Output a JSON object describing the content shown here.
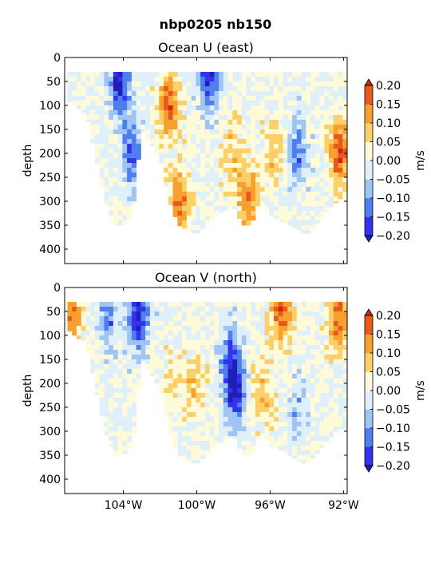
{
  "figure_title": "nbp0205 nb150",
  "colors": {
    "levels": [
      {
        "from": -0.2,
        "to": -0.15,
        "color": "#3333ee"
      },
      {
        "from": -0.15,
        "to": -0.1,
        "color": "#4f7fee"
      },
      {
        "from": -0.1,
        "to": -0.05,
        "color": "#9ec5f3"
      },
      {
        "from": -0.05,
        "to": 0.0,
        "color": "#dff0fb"
      },
      {
        "from": 0.0,
        "to": 0.05,
        "color": "#fffbd9"
      },
      {
        "from": 0.05,
        "to": 0.1,
        "color": "#fbd06a"
      },
      {
        "from": 0.1,
        "to": 0.15,
        "color": "#f5a02f"
      },
      {
        "from": 0.15,
        "to": 0.2,
        "color": "#e85a1c"
      }
    ],
    "under": "#1f1fb8",
    "over": "#d1260f"
  },
  "chart_data": [
    {
      "type": "heatmap",
      "title": "Ocean U (east)",
      "xlabel": "",
      "ylabel": "depth",
      "xlim": [
        -107.2,
        91.8
      ],
      "ylim_inverted": [
        0,
        430
      ],
      "y_ticks": [
        0,
        50,
        100,
        150,
        200,
        250,
        300,
        350,
        400
      ],
      "x_ticks": [],
      "colorbar_label": "m/s",
      "colorbar_ticks": [
        "0.20",
        "0.15",
        "0.10",
        "0.05",
        "0.00",
        "−0.05",
        "−0.10",
        "−0.15",
        "−0.20"
      ],
      "extend": "both",
      "bottom_depth_profile": {
        "lon": [
          -107.0,
          -106.0,
          -105.0,
          -104.5,
          -104.0,
          -103.5,
          -103.0,
          -102.0,
          -101.5,
          -101.0,
          -100.5,
          -100.0,
          -99.0,
          -98.0,
          -97.5,
          -97.0,
          -96.5,
          -96.0,
          -95.0,
          -94.5,
          -94.0,
          -93.5,
          -92.9,
          -92.2
        ],
        "depth": [
          90,
          120,
          300,
          350,
          350,
          330,
          150,
          210,
          300,
          350,
          360,
          370,
          330,
          310,
          350,
          350,
          300,
          330,
          350,
          360,
          370,
          350,
          320,
          295
        ]
      },
      "features": [
        {
          "lon": -104.2,
          "depth": 55,
          "value": -0.2
        },
        {
          "lon": -103.5,
          "depth": 200,
          "value": -0.15
        },
        {
          "lon": -101.5,
          "depth": 100,
          "value": 0.17
        },
        {
          "lon": -100.9,
          "depth": 300,
          "value": 0.17
        },
        {
          "lon": -99.3,
          "depth": 40,
          "value": -0.2
        },
        {
          "lon": -98.1,
          "depth": 200,
          "value": 0.08
        },
        {
          "lon": -97.2,
          "depth": 300,
          "value": 0.16
        },
        {
          "lon": -95.8,
          "depth": 200,
          "value": 0.08
        },
        {
          "lon": -94.5,
          "depth": 200,
          "value": -0.12
        },
        {
          "lon": -92.2,
          "depth": 200,
          "value": 0.2
        }
      ]
    },
    {
      "type": "heatmap",
      "title": "Ocean V (north)",
      "xlabel": "",
      "ylabel": "depth",
      "xlim": [
        -107.2,
        91.8
      ],
      "ylim_inverted": [
        0,
        430
      ],
      "y_ticks": [
        0,
        50,
        100,
        150,
        200,
        250,
        300,
        350,
        400
      ],
      "x_ticks": [
        "104°W",
        "100°W",
        "96°W",
        "92°W"
      ],
      "colorbar_label": "m/s",
      "colorbar_ticks": [
        "0.20",
        "0.15",
        "0.10",
        "0.05",
        "0.00",
        "−0.05",
        "−0.10",
        "−0.15",
        "−0.20"
      ],
      "extend": "both",
      "bottom_depth_profile": {
        "lon": [
          -107.0,
          -106.0,
          -105.0,
          -104.5,
          -104.0,
          -103.5,
          -103.0,
          -102.0,
          -101.5,
          -101.0,
          -100.5,
          -100.0,
          -99.0,
          -98.0,
          -97.5,
          -97.0,
          -96.5,
          -96.0,
          -95.0,
          -94.5,
          -94.0,
          -93.5,
          -92.9,
          -92.2
        ],
        "depth": [
          90,
          120,
          300,
          350,
          350,
          330,
          150,
          210,
          300,
          350,
          360,
          370,
          330,
          310,
          350,
          350,
          300,
          330,
          350,
          360,
          370,
          350,
          320,
          295
        ]
      },
      "features": [
        {
          "lon": -106.8,
          "depth": 60,
          "value": 0.15
        },
        {
          "lon": -104.8,
          "depth": 60,
          "value": -0.12
        },
        {
          "lon": -103.2,
          "depth": 65,
          "value": -0.2
        },
        {
          "lon": -101.3,
          "depth": 200,
          "value": 0.06
        },
        {
          "lon": -100.1,
          "depth": 200,
          "value": 0.08
        },
        {
          "lon": -98.2,
          "depth": 150,
          "value": -0.13
        },
        {
          "lon": -97.9,
          "depth": 220,
          "value": -0.2
        },
        {
          "lon": -96.4,
          "depth": 220,
          "value": 0.09
        },
        {
          "lon": -95.4,
          "depth": 40,
          "value": 0.2
        },
        {
          "lon": -94.5,
          "depth": 250,
          "value": -0.07
        },
        {
          "lon": -92.3,
          "depth": 65,
          "value": 0.17
        }
      ]
    }
  ]
}
